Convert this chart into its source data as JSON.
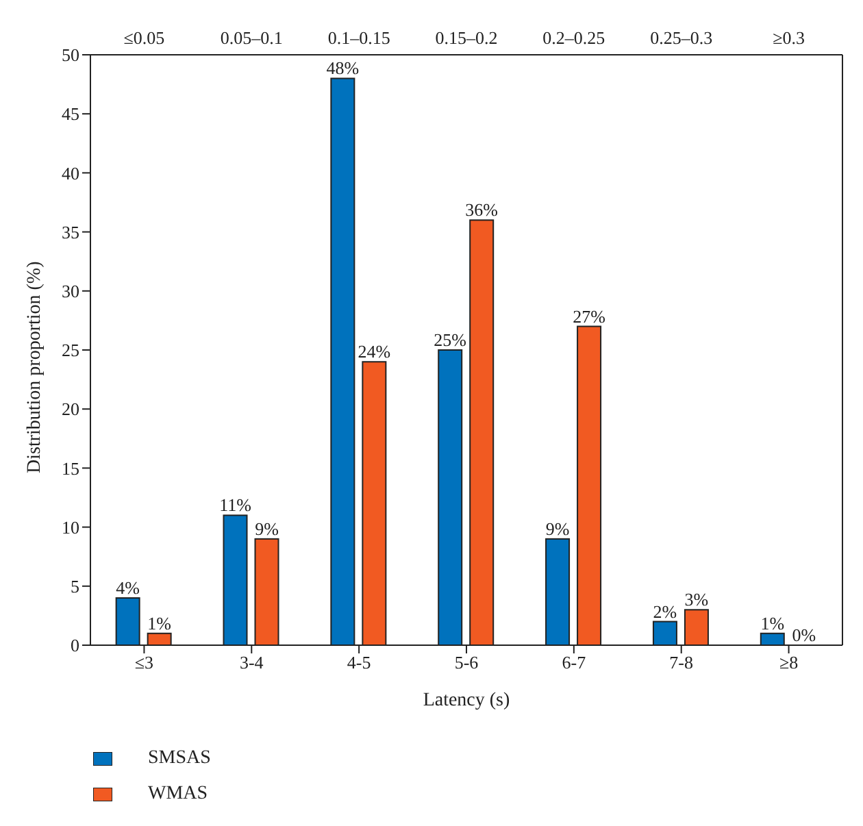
{
  "chart_data": {
    "type": "bar",
    "xlabel": "Latency (s)",
    "ylabel": "Distribution proportion (%)",
    "categories": [
      "≤3",
      "3-4",
      "4-5",
      "5-6",
      "6-7",
      "7-8",
      "≥8"
    ],
    "series": [
      {
        "name": "SMSAS",
        "color": "#0072bd",
        "values": [
          4,
          11,
          48,
          25,
          9,
          2,
          1
        ],
        "value_labels": [
          "4%",
          "11%",
          "48%",
          "25%",
          "9%",
          "2%",
          "1%"
        ]
      },
      {
        "name": "WMAS",
        "color": "#f15a22",
        "values": [
          1,
          9,
          24,
          36,
          27,
          3,
          0
        ],
        "value_labels": [
          "1%",
          "9%",
          "24%",
          "36%",
          "27%",
          "3%",
          "0%"
        ]
      }
    ],
    "ylim": [
      0,
      50
    ],
    "yticks": [
      0,
      5,
      10,
      15,
      20,
      25,
      30,
      35,
      40,
      45,
      50
    ],
    "annotations": [
      "≤0.05",
      "0.05–0.1",
      "0.1–0.15",
      "0.15–0.2",
      "0.2–0.25",
      "0.25–0.3",
      "≥0.3"
    ],
    "grid": false,
    "legend": "bottom left"
  }
}
